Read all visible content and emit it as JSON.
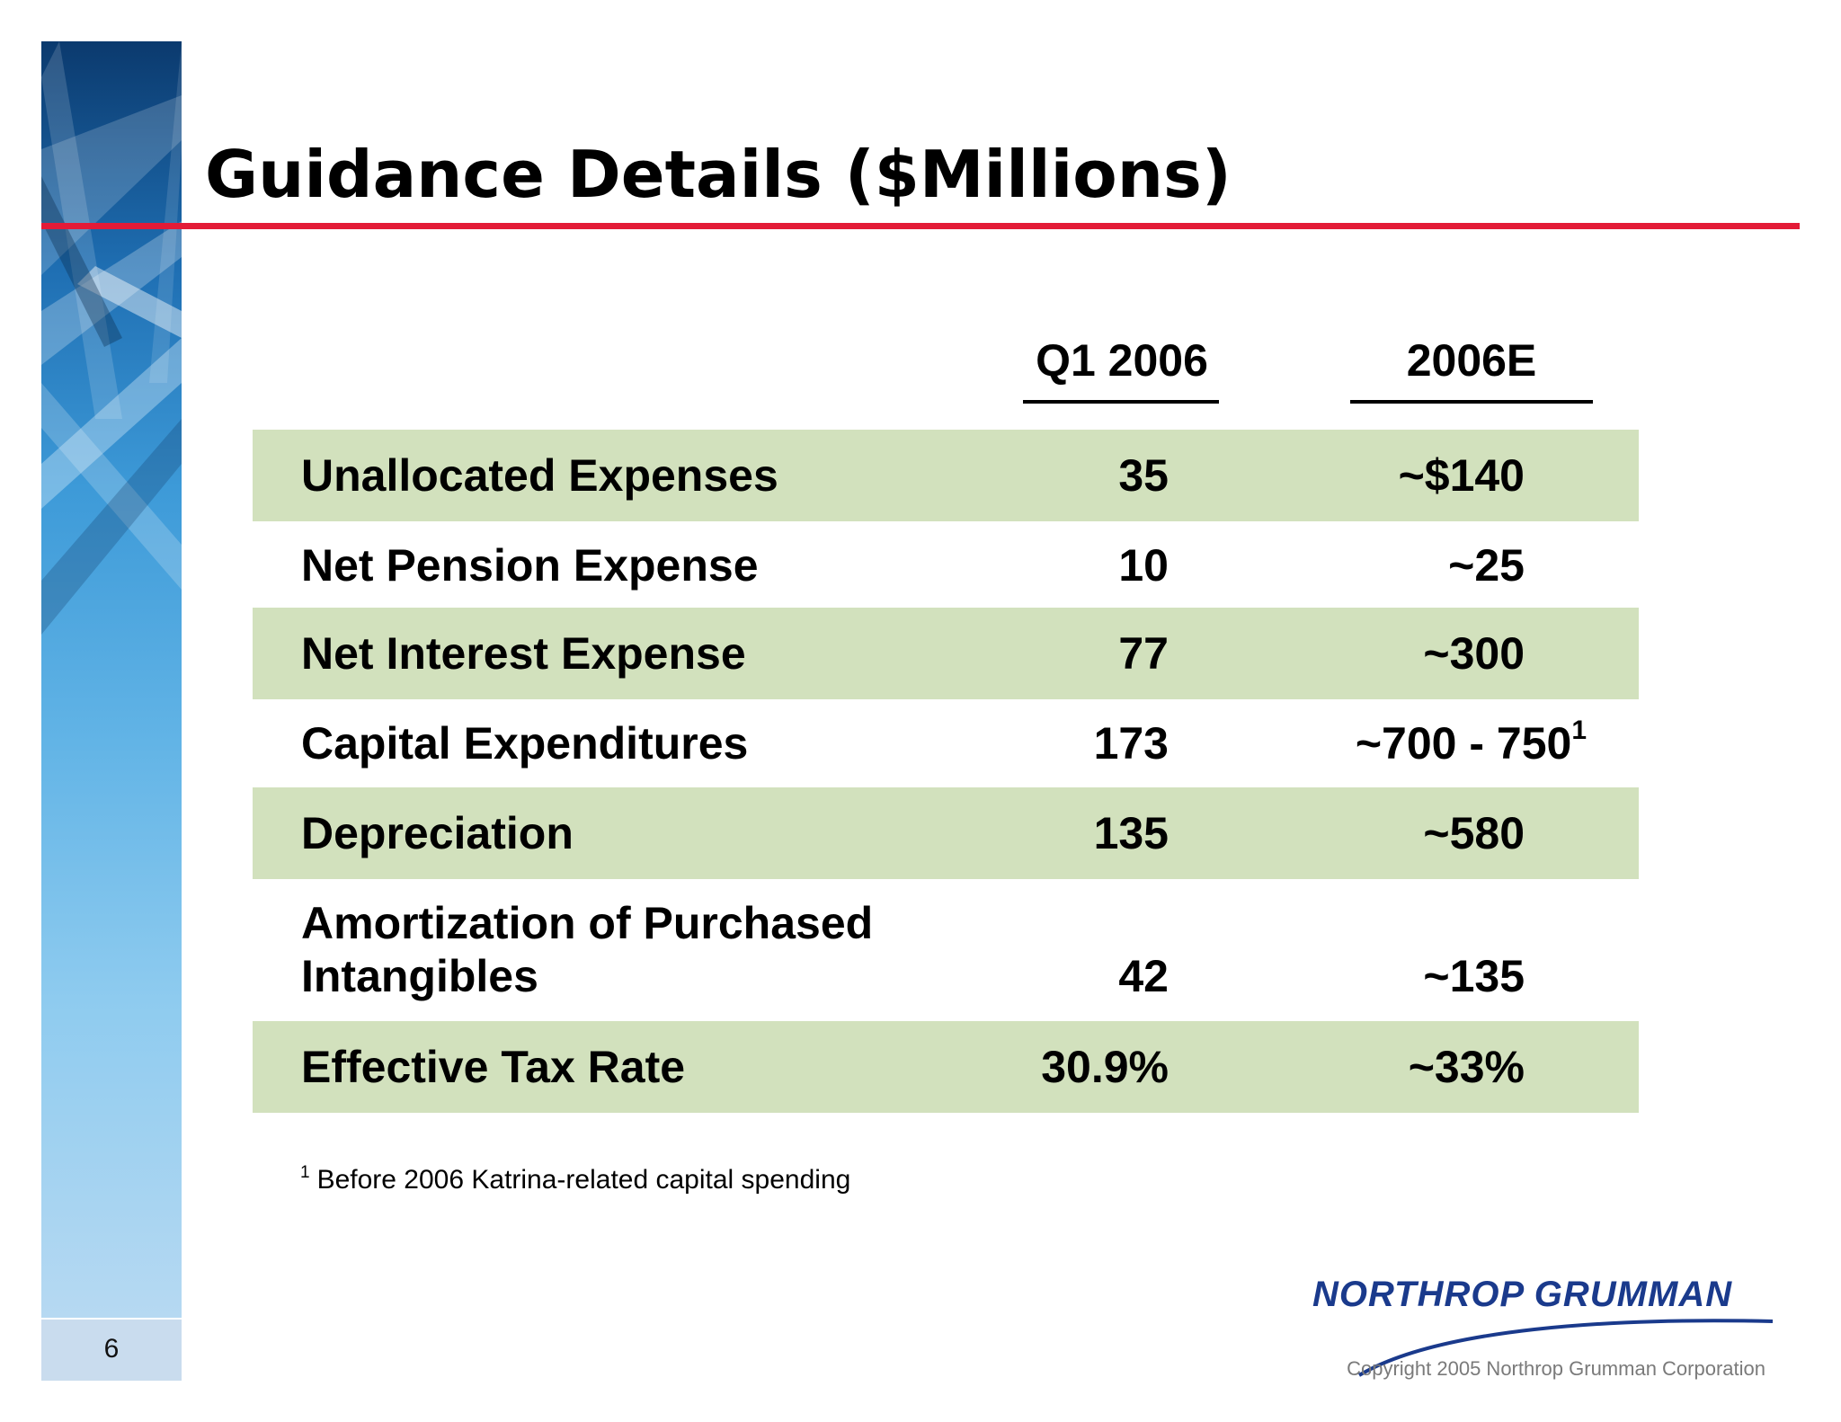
{
  "slide": {
    "title": "Guidance Details ($Millions)",
    "page_number": "6"
  },
  "table": {
    "columns": [
      "Q1 2006",
      "2006E"
    ],
    "rows": [
      {
        "label": "Unallocated Expenses",
        "q1": "35",
        "estimate": "~$140",
        "sup": ""
      },
      {
        "label": "Net Pension Expense",
        "q1": "10",
        "estimate": "~25",
        "sup": ""
      },
      {
        "label": "Net Interest Expense",
        "q1": "77",
        "estimate": "~300",
        "sup": ""
      },
      {
        "label": "Capital Expenditures",
        "q1": "173",
        "estimate": "~700 - 750",
        "sup": "1"
      },
      {
        "label": "Depreciation",
        "q1": "135",
        "estimate": "~580",
        "sup": ""
      },
      {
        "label_line1": "Amortization of Purchased",
        "label_line2": "Intangibles",
        "q1": "42",
        "estimate": "~135",
        "sup": ""
      },
      {
        "label": "Effective Tax Rate",
        "q1": "30.9%",
        "estimate": "~33%",
        "sup": ""
      }
    ]
  },
  "footnote": {
    "mark": "1",
    "text": "Before 2006 Katrina-related capital spending"
  },
  "branding": {
    "logo_text": "NORTHROP GRUMMAN",
    "copyright": "Copyright 2005 Northrop Grumman Corporation"
  },
  "colors": {
    "accent_rule": "#e31b37",
    "row_shade": "#d2e1bd",
    "logo_blue": "#1a3a8c"
  }
}
